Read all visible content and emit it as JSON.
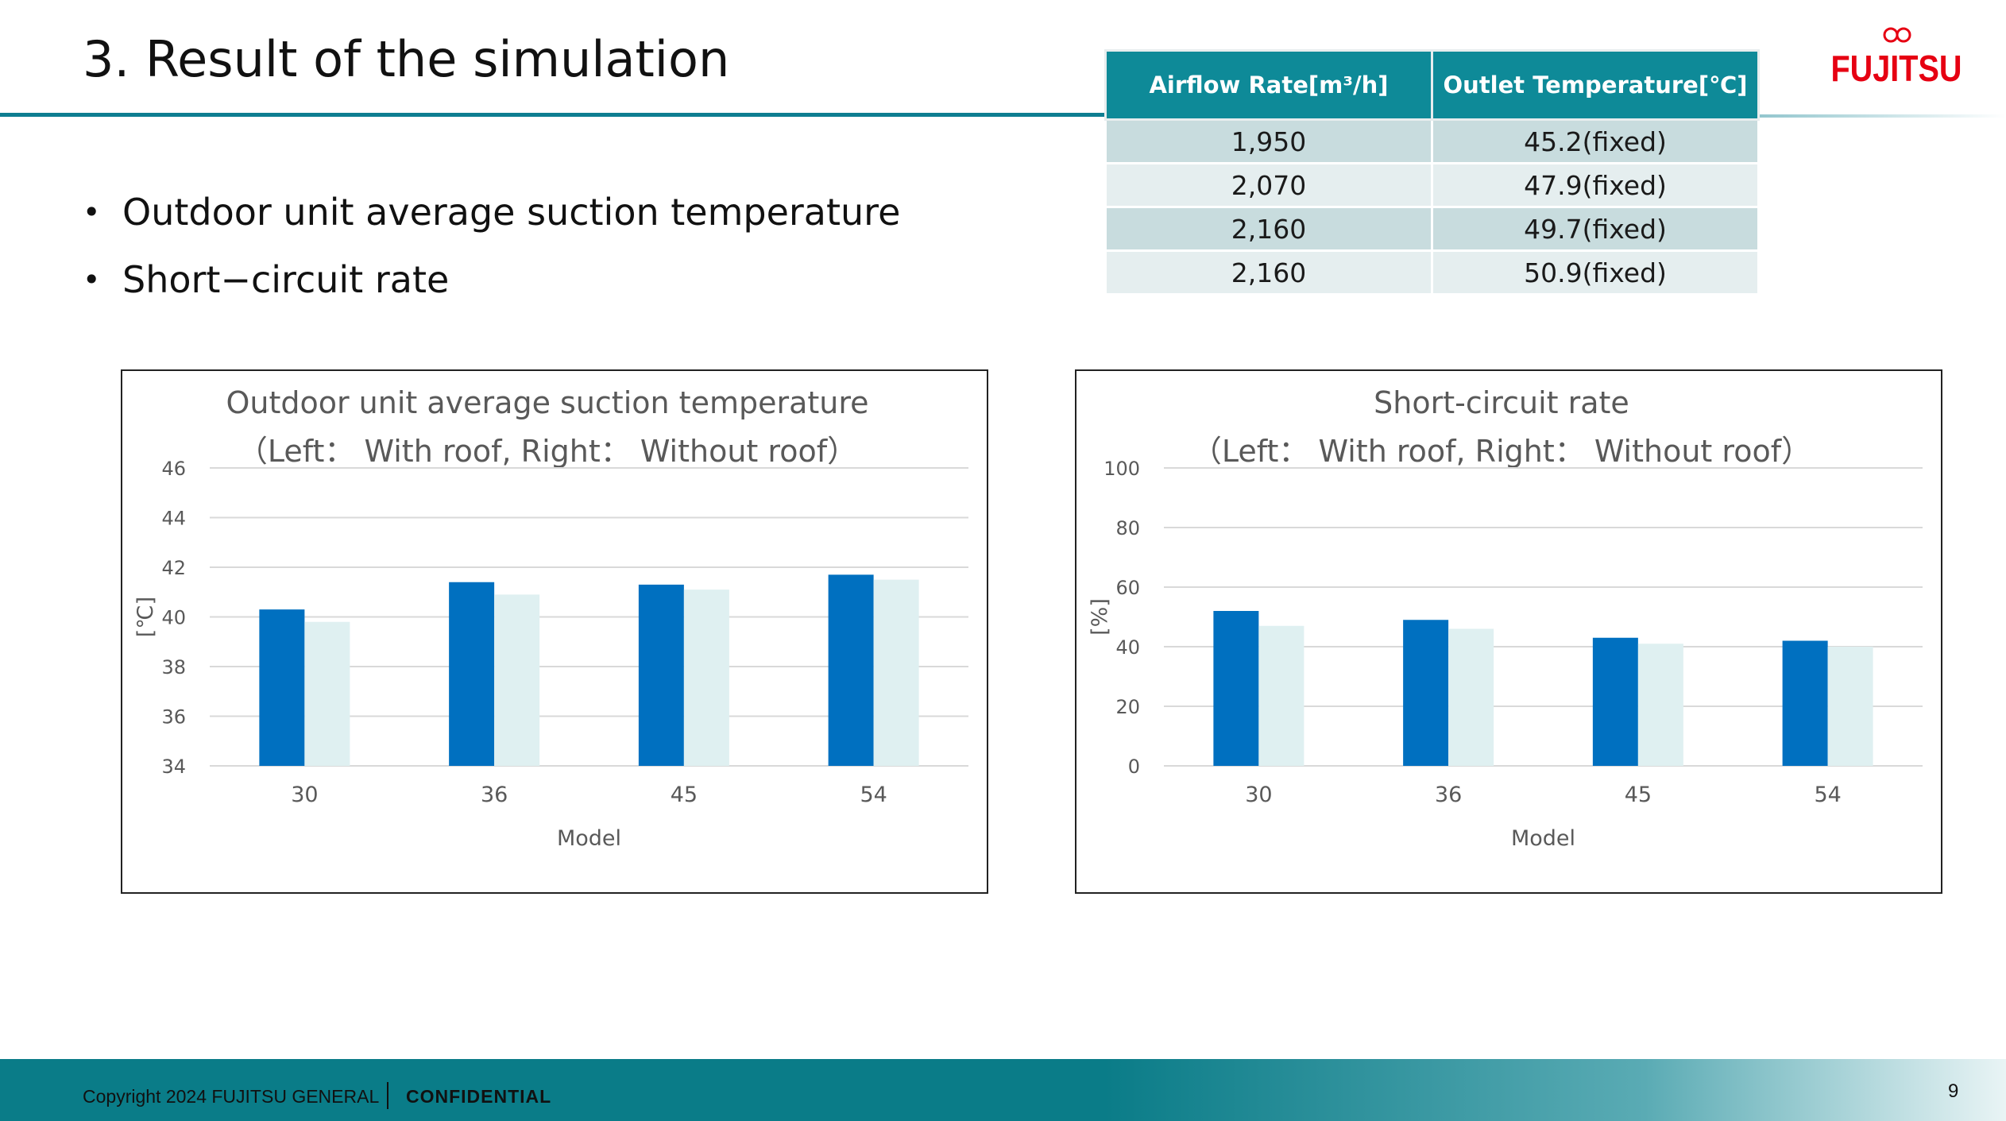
{
  "slide": {
    "title": "3. Result of the simulation",
    "bullets": [
      "Outdoor unit average suction temperature",
      "Short−circuit rate"
    ],
    "logo_text": "FUJITSU",
    "copyright": "Copyright 2024 FUJITSU GENERAL",
    "confidential": "CONFIDENTIAL",
    "page_number": "9"
  },
  "table": {
    "headers": [
      "Airflow Rate[m³/h]",
      "Outlet Temperature[℃]"
    ],
    "rows": [
      [
        "1,950",
        "45.2(fixed)"
      ],
      [
        "2,070",
        "47.9(fixed)"
      ],
      [
        "2,160",
        "49.7(fixed)"
      ],
      [
        "2,160",
        "50.9(fixed)"
      ]
    ]
  },
  "colors": {
    "accent": "#0e8a98",
    "series_with_roof": "#0070c0",
    "series_without_roof": "#dff0f1",
    "brand_red": "#e60012"
  },
  "chart_data": [
    {
      "type": "bar",
      "title": "Outdoor unit average suction temperature",
      "subtitle": "（Left： With roof, Right： Without roof）",
      "xlabel": "Model",
      "ylabel": "[℃]",
      "categories": [
        "30",
        "36",
        "45",
        "54"
      ],
      "ylim": [
        34,
        46
      ],
      "yticks": [
        "34",
        "36",
        "38",
        "40",
        "42",
        "44",
        "46"
      ],
      "grid": true,
      "series": [
        {
          "name": "With roof",
          "values": [
            40.3,
            41.4,
            41.3,
            41.7
          ]
        },
        {
          "name": "Without roof",
          "values": [
            39.8,
            40.9,
            41.1,
            41.5
          ]
        }
      ]
    },
    {
      "type": "bar",
      "title": "Short-circuit rate",
      "subtitle": "（Left： With roof, Right： Without roof）",
      "xlabel": "Model",
      "ylabel": "[%]",
      "categories": [
        "30",
        "36",
        "45",
        "54"
      ],
      "ylim": [
        0,
        100
      ],
      "yticks": [
        "0",
        "20",
        "40",
        "60",
        "80",
        "100"
      ],
      "grid": true,
      "series": [
        {
          "name": "With roof",
          "values": [
            52,
            49,
            43,
            42
          ]
        },
        {
          "name": "Without roof",
          "values": [
            47,
            46,
            41,
            40
          ]
        }
      ]
    }
  ]
}
